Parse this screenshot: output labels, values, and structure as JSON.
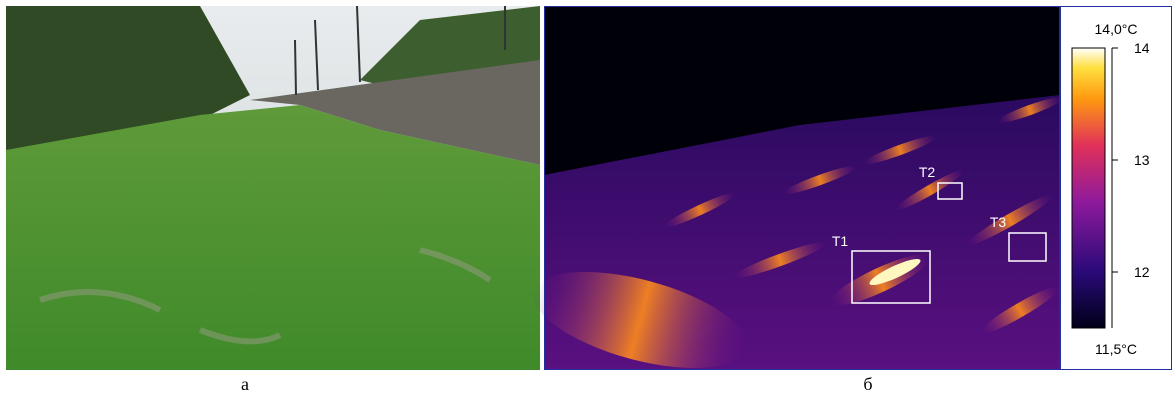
{
  "panels": {
    "left": {
      "caption": "а"
    },
    "right": {
      "caption": "б",
      "regions": [
        {
          "label": "T1"
        },
        {
          "label": "T2"
        },
        {
          "label": "T3"
        }
      ]
    }
  },
  "colorbar": {
    "lim": [
      {
        "value": 11.5,
        "label": "11,5°C"
      },
      {
        "value": 14.0,
        "label": "14,0°C"
      }
    ],
    "ticks": [
      12,
      13,
      14
    ]
  }
}
